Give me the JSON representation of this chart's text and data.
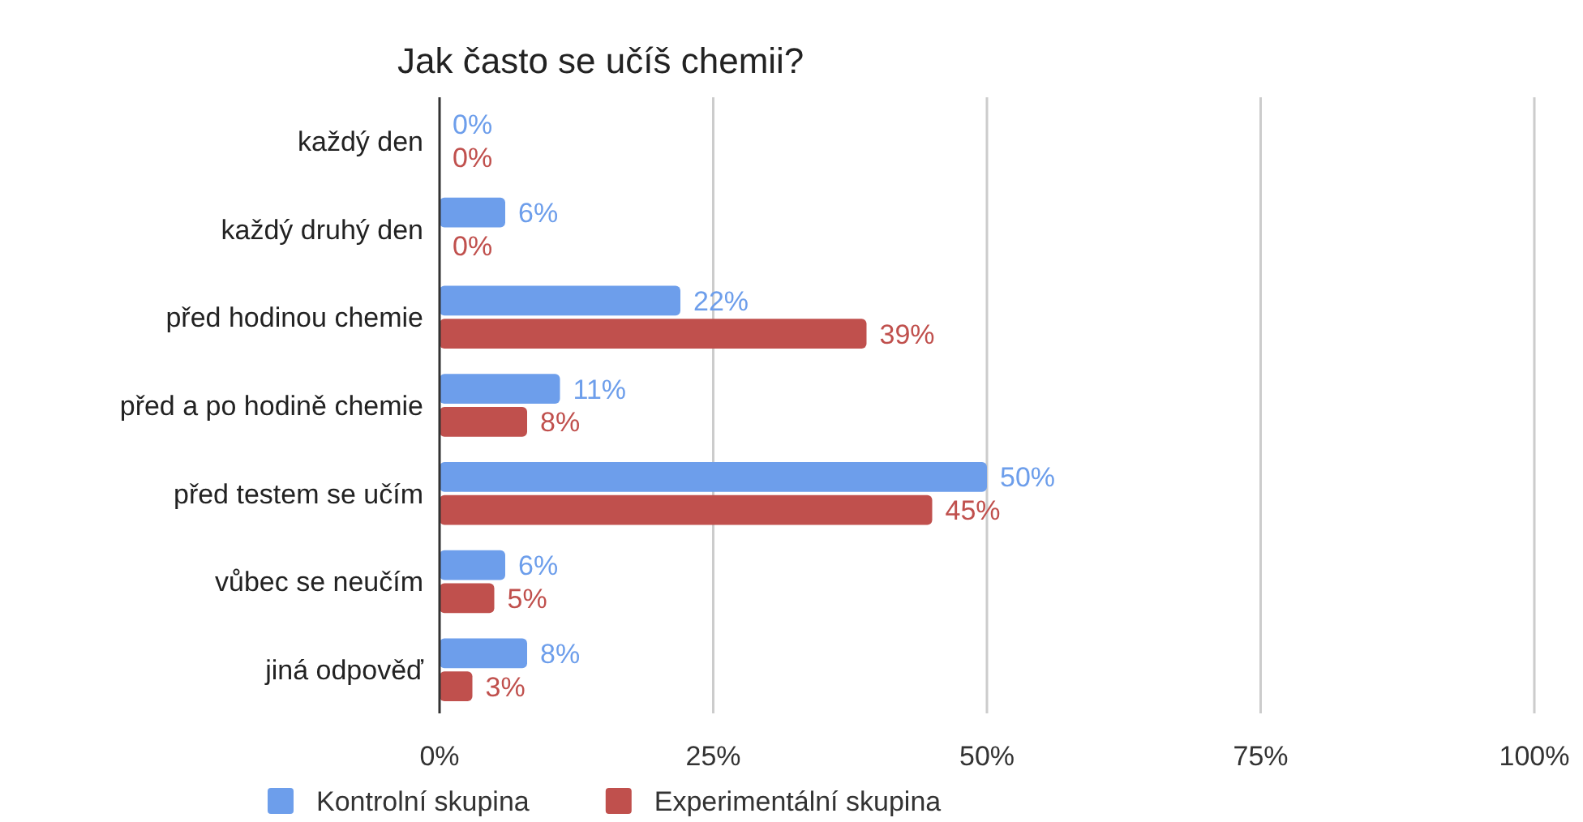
{
  "chart_data": {
    "type": "bar",
    "orientation": "horizontal",
    "title": "Jak často se učíš chemii?",
    "categories": [
      "každý den",
      "každý druhý den",
      "před hodinou chemie",
      "před a po hodině chemie",
      "před testem se učím",
      "vůbec se neučím",
      "jiná odpověď"
    ],
    "series": [
      {
        "name": "Kontrolní skupina",
        "color": "#6d9eeb",
        "values": [
          0,
          6,
          22,
          11,
          50,
          6,
          8
        ],
        "value_labels": [
          "0%",
          "6%",
          "22%",
          "11%",
          "50%",
          "6%",
          "8%"
        ]
      },
      {
        "name": "Experimentální skupina",
        "color": "#c0504d",
        "values": [
          0,
          0,
          39,
          8,
          45,
          5,
          3
        ],
        "value_labels": [
          "0%",
          "0%",
          "39%",
          "8%",
          "45%",
          "5%",
          "3%"
        ]
      }
    ],
    "xlim": [
      0,
      100
    ],
    "xticks": [
      {
        "value": 0,
        "label": "0%"
      },
      {
        "value": 25,
        "label": "25%"
      },
      {
        "value": 50,
        "label": "50%"
      },
      {
        "value": 75,
        "label": "75%"
      },
      {
        "value": 100,
        "label": "100%"
      }
    ],
    "grid": "x",
    "legend": "bottom"
  }
}
